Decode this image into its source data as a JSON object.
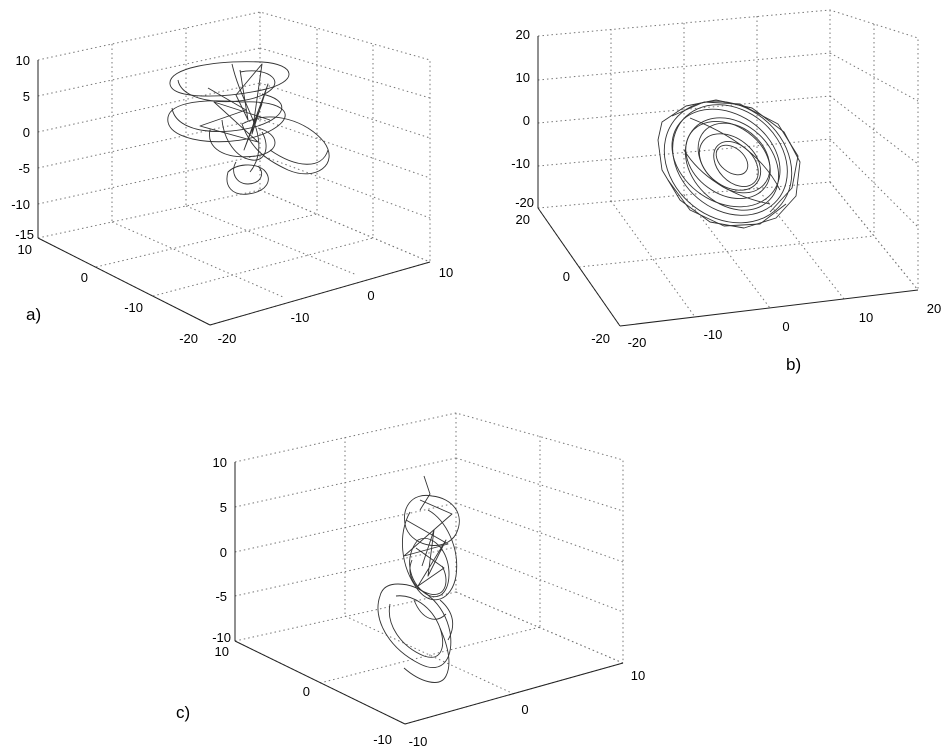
{
  "chart_data": [
    {
      "type": "line3d",
      "panel_label": "a)",
      "grid": true,
      "z_ticks": [
        "10",
        "5",
        "0",
        "-5",
        "-10",
        "-15"
      ],
      "y_ticks": [
        "10",
        "0",
        "-10",
        "-20"
      ],
      "x_ticks": [
        "-20",
        "-10",
        "0",
        "10"
      ],
      "zlim": [
        -15,
        10
      ],
      "ylim": [
        -20,
        10
      ],
      "xlim": [
        -20,
        10
      ]
    },
    {
      "type": "line3d",
      "panel_label": "b)",
      "grid": true,
      "z_ticks": [
        "20",
        "10",
        "0",
        "-10",
        "-20"
      ],
      "y_ticks": [
        "20",
        "0",
        "-20"
      ],
      "x_ticks": [
        "-20",
        "-10",
        "0",
        "10",
        "20"
      ],
      "zlim": [
        -20,
        20
      ],
      "ylim": [
        -20,
        20
      ],
      "xlim": [
        -20,
        20
      ]
    },
    {
      "type": "line3d",
      "panel_label": "c)",
      "grid": true,
      "z_ticks": [
        "10",
        "5",
        "0",
        "-5",
        "-10"
      ],
      "y_ticks": [
        "10",
        "0",
        "-10"
      ],
      "x_ticks": [
        "-10",
        "0",
        "10"
      ],
      "zlim": [
        -10,
        10
      ],
      "ylim": [
        -10,
        10
      ],
      "xlim": [
        -10,
        10
      ]
    }
  ]
}
